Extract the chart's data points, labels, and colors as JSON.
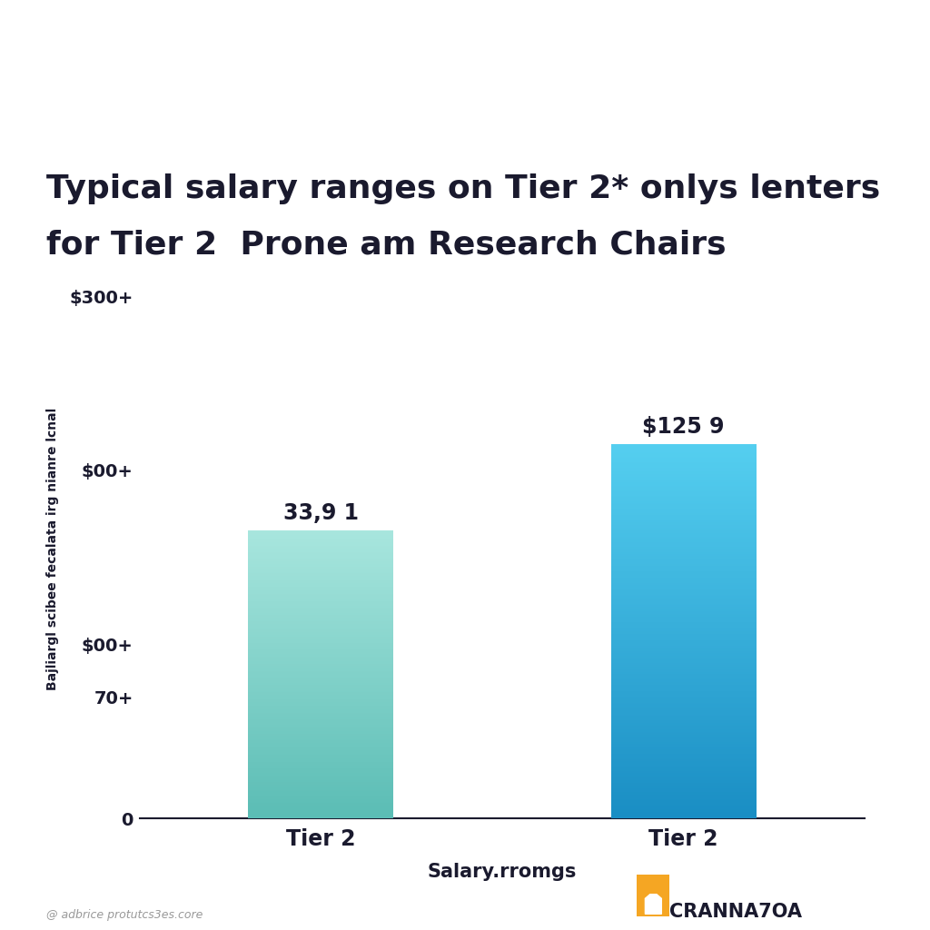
{
  "title_line1": "Typical salary ranges on Tier 2* onlys lenters",
  "title_line2": "for Tier 2  Prone am Research Chairs",
  "categories": [
    "Tier 2",
    "Tier 2"
  ],
  "values": [
    165000,
    215000
  ],
  "bar_color_left": "#72cfc4",
  "bar_color_right": "#29b5e8",
  "value_labels": [
    "33,9 1",
    "$125 9"
  ],
  "ytick_labels": [
    "0",
    "70+",
    "$00+",
    "$00+",
    "$300+"
  ],
  "ytick_values": [
    0,
    70000,
    100000,
    200000,
    300000
  ],
  "ylabel": "Bajliargl scibee fecalata irg nianre lcnal",
  "xlabel": "Salary.rromgs",
  "background_color": "#ffffff",
  "title_fontsize": 26,
  "axis_fontsize": 15,
  "tick_fontsize": 14,
  "value_fontsize": 17,
  "watermark": "@ adbrice protutcs3es.core",
  "logo_text": "CRANNA7OA",
  "ylim": [
    0,
    310000
  ],
  "title_color": "#1a1a2e",
  "text_color": "#1a1a2e"
}
